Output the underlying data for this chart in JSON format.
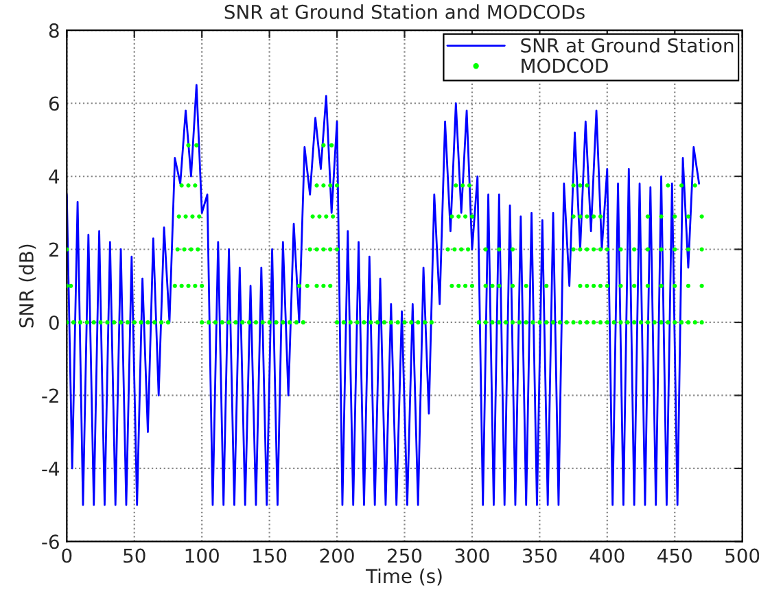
{
  "chart_data": {
    "type": "line",
    "title": "SNR at Ground Station and MODCODs",
    "xlabel": "Time (s)",
    "ylabel": "SNR (dB)",
    "xlim": [
      0,
      500
    ],
    "xticks": [
      0,
      50,
      100,
      150,
      200,
      250,
      300,
      350,
      400,
      450,
      500
    ],
    "ylim": [
      -6,
      8
    ],
    "yticks": [
      -6,
      -4,
      -2,
      0,
      2,
      4,
      6,
      8
    ],
    "grid": true,
    "legend": "top right",
    "series": [
      {
        "name": "SNR at Ground Station",
        "color": "#0000ff",
        "marker": "none",
        "line_style": "solid",
        "x": [
          0,
          4,
          8,
          12,
          16,
          20,
          24,
          28,
          32,
          36,
          40,
          44,
          48,
          52,
          56,
          60,
          64,
          68,
          72,
          76,
          80,
          84,
          88,
          92,
          96,
          100,
          104,
          108,
          112,
          116,
          120,
          124,
          128,
          132,
          136,
          140,
          144,
          148,
          152,
          156,
          160,
          164,
          168,
          172,
          176,
          180,
          184,
          188,
          192,
          196,
          200,
          204,
          208,
          212,
          216,
          220,
          224,
          228,
          232,
          236,
          240,
          244,
          248,
          252,
          256,
          260,
          264,
          268,
          272,
          276,
          280,
          284,
          288,
          292,
          296,
          300,
          304,
          308,
          312,
          316,
          320,
          324,
          328,
          332,
          336,
          340,
          344,
          348,
          352,
          356,
          360,
          364,
          368,
          372,
          376,
          380,
          384,
          388,
          392,
          396,
          400,
          404,
          408,
          412,
          416,
          420,
          424,
          428,
          432,
          436,
          440,
          444,
          448,
          452,
          456,
          460,
          464,
          468
        ],
        "values": [
          3.5,
          -4,
          3.3,
          -5,
          2.4,
          -5,
          2.5,
          -5,
          2.2,
          -5,
          2.0,
          -5,
          1.8,
          -5,
          1.2,
          -3,
          2.3,
          -2,
          2.6,
          0,
          4.5,
          3.8,
          5.8,
          4,
          6.5,
          3,
          3.5,
          -5,
          2.2,
          -5,
          2.0,
          -5,
          1.5,
          -5,
          1.0,
          -5,
          1.5,
          -5,
          2.0,
          -5,
          2.2,
          -2,
          2.7,
          0,
          4.8,
          3.5,
          5.6,
          4.2,
          6.2,
          3,
          5.5,
          -5,
          2.5,
          -5,
          2.2,
          -5,
          1.8,
          -5,
          1.2,
          -5,
          0.5,
          -5,
          0.3,
          -5,
          0.5,
          -5,
          1.5,
          -2.5,
          3.5,
          0.5,
          5.5,
          2.5,
          6.0,
          3,
          5.8,
          2,
          4.0,
          -5,
          3.5,
          -5,
          3.5,
          -5,
          3.2,
          -5,
          2.9,
          -5,
          3.0,
          -5,
          2.8,
          -5,
          3.0,
          -5,
          3.8,
          1,
          5.2,
          2,
          5.5,
          2.5,
          5.8,
          2,
          4.2,
          -5,
          3.8,
          -5,
          4.2,
          -5,
          3.8,
          -5,
          3.7,
          -5,
          4.0,
          -5,
          3.8,
          -5,
          4.5,
          1.5,
          4.8,
          3.8
        ]
      },
      {
        "name": "MODCOD",
        "type": "scatter",
        "color": "#00ff00",
        "marker": "circle",
        "x": [
          0,
          5,
          10,
          15,
          20,
          25,
          30,
          35,
          40,
          45,
          50,
          55,
          60,
          65,
          70,
          75,
          100,
          105,
          110,
          115,
          120,
          125,
          130,
          135,
          140,
          145,
          150,
          155,
          160,
          165,
          170,
          175,
          200,
          205,
          210,
          215,
          220,
          225,
          230,
          235,
          240,
          245,
          250,
          255,
          260,
          265,
          270,
          305,
          310,
          315,
          320,
          325,
          330,
          335,
          340,
          345,
          350,
          355,
          360,
          365,
          370,
          375,
          380,
          385,
          390,
          395,
          400,
          405,
          410,
          415,
          420,
          425,
          430,
          435,
          440,
          445,
          450,
          455,
          460,
          465,
          470,
          0,
          3,
          80,
          85,
          90,
          95,
          100,
          172,
          178,
          185,
          190,
          195,
          285,
          290,
          295,
          300,
          310,
          315,
          320,
          330,
          340,
          355,
          380,
          385,
          390,
          395,
          400,
          410,
          420,
          430,
          440,
          450,
          460,
          470,
          0,
          82,
          87,
          92,
          97,
          180,
          185,
          190,
          195,
          200,
          282,
          287,
          292,
          297,
          310,
          320,
          330,
          375,
          380,
          385,
          390,
          395,
          400,
          410,
          420,
          430,
          440,
          450,
          460,
          470,
          83,
          88,
          93,
          98,
          182,
          187,
          192,
          197,
          285,
          290,
          295,
          300,
          375,
          380,
          385,
          390,
          395,
          430,
          440,
          450,
          460,
          470,
          85,
          90,
          95,
          185,
          190,
          195,
          200,
          288,
          293,
          298,
          375,
          380,
          385,
          445,
          455,
          465,
          90,
          96,
          190,
          196
        ],
        "values": [
          0,
          0,
          0,
          0,
          0,
          0,
          0,
          0,
          0,
          0,
          0,
          0,
          0,
          0,
          0,
          0,
          0,
          0,
          0,
          0,
          0,
          0,
          0,
          0,
          0,
          0,
          0,
          0,
          0,
          0,
          0,
          0,
          0,
          0,
          0,
          0,
          0,
          0,
          0,
          0,
          0,
          0,
          0,
          0,
          0,
          0,
          0,
          0,
          0,
          0,
          0,
          0,
          0,
          0,
          0,
          0,
          0,
          0,
          0,
          0,
          0,
          0,
          0,
          0,
          0,
          0,
          0,
          0,
          0,
          0,
          0,
          0,
          0,
          0,
          0,
          0,
          0,
          0,
          0,
          0,
          0,
          1,
          1,
          1,
          1,
          1,
          1,
          1,
          1,
          1,
          1,
          1,
          1,
          1,
          1,
          1,
          1,
          1,
          1,
          1,
          1,
          1,
          1,
          1,
          1,
          1,
          1,
          1,
          1,
          1,
          1,
          1,
          1,
          1,
          1,
          2,
          2,
          2,
          2,
          2,
          2,
          2,
          2,
          2,
          2,
          2,
          2,
          2,
          2,
          2,
          2,
          2,
          2,
          2,
          2,
          2,
          2,
          2,
          2,
          2,
          2,
          2,
          2,
          2,
          2,
          2.9,
          2.9,
          2.9,
          2.9,
          2.9,
          2.9,
          2.9,
          2.9,
          2.9,
          2.9,
          2.9,
          2.9,
          2.9,
          2.9,
          2.9,
          2.9,
          2.9,
          2.9,
          2.9,
          2.9,
          2.9,
          2.9,
          3.75,
          3.75,
          3.75,
          3.75,
          3.75,
          3.75,
          3.75,
          3.75,
          3.75,
          3.75,
          3.75,
          3.75,
          3.75,
          3.75,
          3.75,
          3.75,
          4.85,
          4.85,
          4.85,
          4.85
        ]
      }
    ]
  }
}
